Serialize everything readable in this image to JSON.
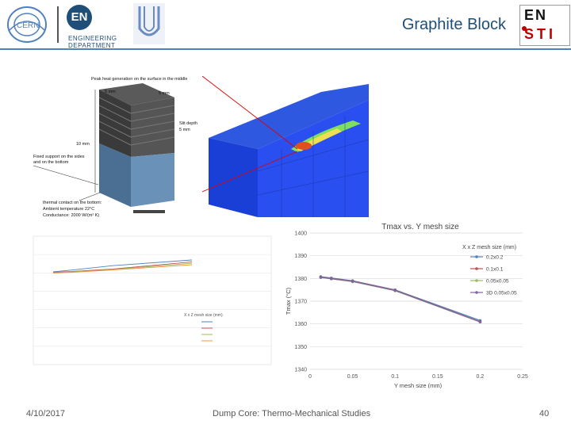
{
  "header": {
    "title": "Graphite Block",
    "en_logo": {
      "initials": "EN",
      "line1": "ENGINEERING",
      "line2": "DEPARTMENT"
    },
    "ensti_logo": {
      "line1": "EN",
      "line2": "STI"
    }
  },
  "cube_annotations": {
    "peak_heat": "Peak heat generation on the surface in the middle",
    "dim_top1": "5 mm",
    "dim_top2": "5 mm",
    "slit_depth": "Slit depth",
    "slit_val": "5 mm",
    "height": "10 mm",
    "fixed_support_1": "Fixed support on the sides",
    "fixed_support_2": "and on the bottom",
    "thermal_1": "thermal contact on the bottom:",
    "thermal_2": "Ambient temperature 22°C",
    "thermal_3": "Conductance: 2000 W/(m² K)"
  },
  "charts": {
    "right": {
      "title": "Tmax vs. Y mesh size",
      "ylabel": "Tmax (°C)",
      "xlabel": "Y mesh size (mm)",
      "legend_title": "X x Z mesh size (mm)",
      "y_ticks": [
        "1400",
        "1390",
        "1380",
        "1370",
        "1360",
        "1350",
        "1340"
      ],
      "x_ticks": [
        "0",
        "0.05",
        "0.1",
        "0.15",
        "0.2",
        "0.25"
      ]
    },
    "left": {
      "legend_title": "X x Z mesh size (mm)"
    }
  },
  "chart_data": [
    {
      "type": "line",
      "title": "Tmax vs. Y mesh size",
      "xlabel": "Y mesh size (mm)",
      "ylabel": "Tmax (°C)",
      "xlim": [
        0,
        0.25
      ],
      "ylim": [
        1340,
        1400
      ],
      "legend_title": "X x Z mesh size (mm)",
      "legend_position": "top-right",
      "series": [
        {
          "name": "0.2x0.2",
          "color": "#4f81bd",
          "x": [
            0.0125,
            0.025,
            0.05,
            0.1,
            0.2
          ],
          "y": [
            1380.8,
            1380.2,
            1379.0,
            1375.0,
            1361.5
          ]
        },
        {
          "name": "0.1x0.1",
          "color": "#c0504d",
          "x": [
            0.0125,
            0.025,
            0.05,
            0.1,
            0.2
          ],
          "y": [
            1380.6,
            1380.0,
            1378.8,
            1374.8,
            1361.0
          ]
        },
        {
          "name": "0.05x0.05",
          "color": "#9bbb59",
          "x": [
            0.0125,
            0.025,
            0.05,
            0.1,
            0.2
          ],
          "y": [
            1380.4,
            1379.8,
            1378.6,
            1374.6,
            1360.8
          ]
        },
        {
          "name": "3D 0.05x0.05",
          "color": "#8064a2",
          "x": [
            0.0125,
            0.025,
            0.05,
            0.1,
            0.2
          ],
          "y": [
            1380.5,
            1379.9,
            1378.7,
            1374.7,
            1360.9
          ]
        }
      ]
    },
    {
      "type": "line",
      "legend_title": "X x Z mesh size (mm)",
      "legend_position": "middle-right",
      "x": [
        0.025,
        0.05,
        0.1,
        0.2
      ],
      "xlim": [
        0,
        0.3
      ],
      "series": [
        {
          "color": "#4f81bd",
          "values": [
            0.1,
            0.18,
            0.36,
            0.6
          ]
        },
        {
          "color": "#c0504d",
          "values": [
            0.08,
            0.12,
            0.22,
            0.52
          ]
        },
        {
          "color": "#9bbb59",
          "values": [
            0.06,
            0.1,
            0.2,
            0.46
          ]
        },
        {
          "color": "#f79646",
          "values": [
            0.05,
            0.08,
            0.18,
            0.4
          ]
        }
      ]
    }
  ],
  "footer": {
    "date": "4/10/2017",
    "title": "Dump Core: Thermo-Mechanical Studies",
    "page": "40"
  }
}
